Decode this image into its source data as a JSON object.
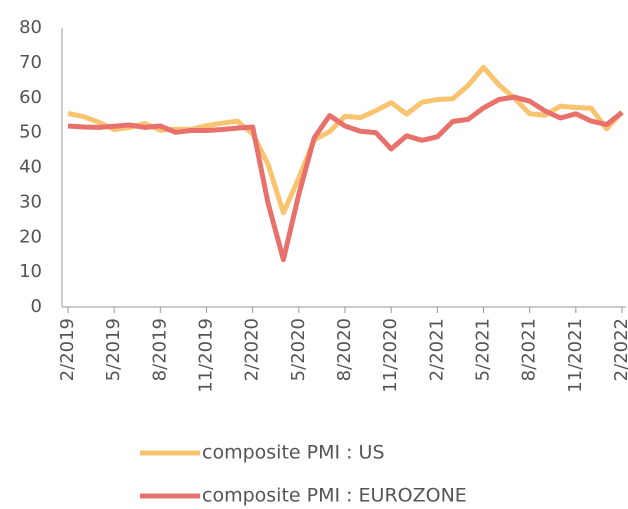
{
  "chart_data": {
    "type": "line",
    "categories": [
      "2/2019",
      null,
      null,
      "5/2019",
      null,
      null,
      "8/2019",
      null,
      null,
      "11/2019",
      null,
      null,
      "2/2020",
      null,
      null,
      "5/2020",
      null,
      null,
      "8/2020",
      null,
      null,
      "11/2020",
      null,
      null,
      "2/2021",
      null,
      null,
      "5/2021",
      null,
      null,
      "8/2021",
      null,
      null,
      "11/2021",
      null,
      null,
      "2/2022"
    ],
    "series": [
      {
        "name": "composite PMI : US",
        "color": "#f9c46f",
        "values": [
          55.5,
          54.6,
          53.0,
          50.9,
          51.5,
          52.6,
          50.7,
          51.0,
          50.9,
          52.0,
          52.7,
          53.3,
          49.6,
          40.9,
          27.0,
          37.0,
          47.9,
          50.3,
          54.7,
          54.3,
          56.3,
          58.6,
          55.3,
          58.7,
          59.5,
          59.7,
          63.5,
          68.7,
          63.7,
          59.9,
          55.4,
          55.0,
          57.6,
          57.2,
          57.0,
          51.1,
          55.9
        ]
      },
      {
        "name": "composite PMI : EUROZONE",
        "color": "#e8716b",
        "values": [
          51.9,
          51.6,
          51.5,
          51.8,
          52.2,
          51.5,
          51.9,
          50.1,
          50.6,
          50.6,
          50.9,
          51.3,
          51.6,
          29.7,
          13.6,
          32.3,
          48.5,
          54.9,
          51.9,
          50.4,
          50.0,
          45.3,
          49.1,
          47.8,
          48.8,
          53.2,
          53.8,
          57.1,
          59.5,
          60.2,
          59.0,
          56.2,
          54.2,
          55.4,
          53.3,
          52.3,
          55.8
        ]
      }
    ],
    "ylim": [
      0,
      80
    ],
    "yticks": [
      0,
      10,
      20,
      30,
      40,
      50,
      60,
      70,
      80
    ]
  }
}
